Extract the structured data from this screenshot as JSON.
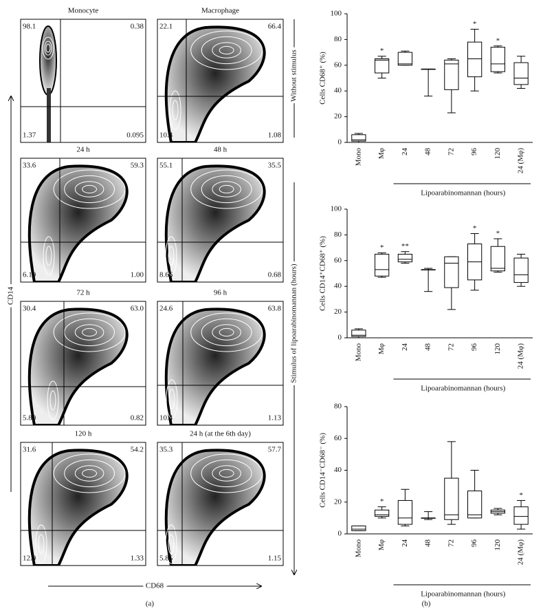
{
  "flow_panel": {
    "panel_label": "(a)",
    "x_label": "CD68",
    "y_label": "CD14",
    "group_labels": [
      "Without stimulus",
      "Stimulus of lipoarabinomannan (hours)"
    ],
    "plots": [
      {
        "title": "Monocyte",
        "upper_left": "98.1",
        "upper_right": "0.38",
        "lower_left": "1.37",
        "lower_right": "0.095"
      },
      {
        "title": "Macrophage",
        "upper_left": "22.1",
        "upper_right": "66.4",
        "lower_left": "10.4",
        "lower_right": "1.08"
      },
      {
        "title": "24 h",
        "upper_left": "33.6",
        "upper_right": "59.3",
        "lower_left": "6.19",
        "lower_right": "1.00"
      },
      {
        "title": "48 h",
        "upper_left": "55.1",
        "upper_right": "35.5",
        "lower_left": "8.66",
        "lower_right": "0.68"
      },
      {
        "title": "72 h",
        "upper_left": "30.4",
        "upper_right": "63.0",
        "lower_left": "5.80",
        "lower_right": "0.82"
      },
      {
        "title": "96 h",
        "upper_left": "24.6",
        "upper_right": "63.8",
        "lower_left": "10.4",
        "lower_right": "1.13"
      },
      {
        "title": "120 h",
        "upper_left": "31.6",
        "upper_right": "54.2",
        "lower_left": "12.9",
        "lower_right": "1.33"
      },
      {
        "title": "24 h (at the 6th day)",
        "upper_left": "35.3",
        "upper_right": "57.7",
        "lower_left": "5.85",
        "lower_right": "1.15"
      }
    ]
  },
  "panel_b_label": "(b)",
  "chart_data": [
    {
      "type": "box",
      "y_label": "Cells CD68⁺ (%)",
      "group_label": "Lipoarabinomannan (hours)",
      "categories": [
        "Mono",
        "Mφ",
        "24",
        "48",
        "72",
        "96",
        "120",
        "24 (Mφ)"
      ],
      "boxes": [
        [
          0,
          1,
          2,
          6,
          7
        ],
        [
          50,
          54,
          64,
          65,
          67
        ],
        [
          60,
          60,
          61,
          70,
          71
        ],
        [
          36,
          57,
          57,
          57,
          57
        ],
        [
          23,
          41,
          61,
          64,
          65
        ],
        [
          40,
          51,
          65,
          78,
          88
        ],
        [
          54,
          55,
          61,
          74,
          75
        ],
        [
          42,
          45,
          50,
          62,
          67
        ]
      ],
      "annotations": [
        null,
        "*",
        null,
        null,
        null,
        "*",
        "*",
        null
      ],
      "ylim": [
        0,
        100
      ],
      "yticks": [
        0,
        20,
        40,
        60,
        80,
        100
      ]
    },
    {
      "type": "box",
      "y_label": "Cells CD14⁺CD68⁺ (%)",
      "group_label": "Lipoarabinomannan (hours)",
      "categories": [
        "Mono",
        "Mφ",
        "24",
        "48",
        "72",
        "96",
        "120",
        "24 (Mφ)"
      ],
      "boxes": [
        [
          0,
          1,
          2,
          6,
          7
        ],
        [
          47,
          48,
          53,
          65,
          66
        ],
        [
          58,
          59,
          61,
          65,
          67
        ],
        [
          36,
          53,
          53,
          53,
          54
        ],
        [
          22,
          39,
          58,
          63,
          63
        ],
        [
          37,
          45,
          59,
          73,
          81
        ],
        [
          51,
          52,
          54,
          71,
          77
        ],
        [
          40,
          43,
          49,
          62,
          65
        ]
      ],
      "annotations": [
        null,
        "*",
        "**",
        null,
        null,
        "*",
        "*",
        null
      ],
      "ylim": [
        0,
        100
      ],
      "yticks": [
        0,
        20,
        40,
        60,
        80,
        100
      ]
    },
    {
      "type": "box",
      "y_label": "Cells CD14⁻CD68⁻ (%)",
      "group_label": "Lipoarabinomannan (hours)",
      "categories": [
        "Mono",
        "Mφ",
        "24",
        "48",
        "72",
        "96",
        "120",
        "24 (Mφ)"
      ],
      "boxes": [
        [
          2,
          2,
          3,
          5,
          5
        ],
        [
          10,
          11,
          12,
          15,
          17
        ],
        [
          5,
          6,
          10,
          21,
          28
        ],
        [
          9,
          10,
          10,
          10,
          14
        ],
        [
          6,
          9,
          12,
          35,
          58
        ],
        [
          10,
          10,
          12,
          27,
          40
        ],
        [
          12,
          13,
          14,
          15,
          16
        ],
        [
          3,
          6,
          11,
          17,
          21
        ]
      ],
      "annotations": [
        null,
        "*",
        null,
        null,
        null,
        null,
        null,
        "*"
      ],
      "ylim": [
        0,
        80
      ],
      "yticks": [
        0,
        20,
        40,
        60,
        80
      ]
    }
  ]
}
